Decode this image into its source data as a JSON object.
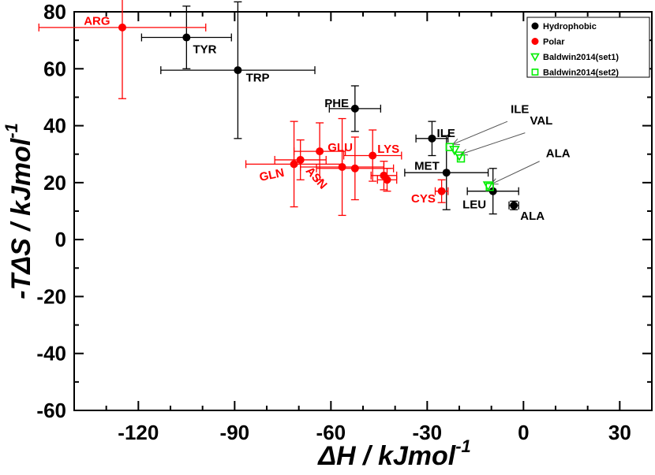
{
  "chart_data": {
    "type": "scatter",
    "xlabel": "ΔH / kJmol",
    "xlabel_sup": "-1",
    "ylabel": "-TΔS / kJmol",
    "ylabel_sup": "-1",
    "xlim": [
      -140,
      40
    ],
    "ylim": [
      -60,
      80
    ],
    "xticks": [
      -120,
      -90,
      -60,
      -30,
      0,
      30
    ],
    "yticks": [
      -60,
      -40,
      -20,
      0,
      20,
      40,
      60,
      80
    ],
    "grid": false,
    "legend_position": "top-right",
    "series": [
      {
        "name": "Hydrophobic",
        "color": "#000000",
        "marker": "filled-circle",
        "points": [
          {
            "x": -105,
            "y": 71,
            "xerr": 14,
            "yerr": 11
          },
          {
            "x": -89,
            "y": 59.5,
            "xerr": 24,
            "yerr": 24
          },
          {
            "x": -52.5,
            "y": 46,
            "xerr": 8,
            "yerr": 8
          },
          {
            "x": -28.5,
            "y": 35.5,
            "xerr": 5,
            "yerr": 6
          },
          {
            "x": -24,
            "y": 23.5,
            "xerr": 13,
            "yerr": 13
          },
          {
            "x": -9.5,
            "y": 17,
            "xerr": 8,
            "yerr": 8
          },
          {
            "x": -3,
            "y": 12,
            "xerr": 1.5,
            "yerr": 1.5
          }
        ]
      },
      {
        "name": "Polar",
        "color": "#ff0000",
        "marker": "filled-circle",
        "points": [
          {
            "x": -125,
            "y": 74.5,
            "xerr": 26,
            "yerr": 25
          },
          {
            "x": -71.5,
            "y": 26.5,
            "xerr": 15,
            "yerr": 15
          },
          {
            "x": -69.5,
            "y": 28,
            "xerr": 8,
            "yerr": 7
          },
          {
            "x": -63.5,
            "y": 31,
            "xerr": 8,
            "yerr": 10
          },
          {
            "x": -56.5,
            "y": 25.5,
            "xerr": 13,
            "yerr": 17
          },
          {
            "x": -52.5,
            "y": 25,
            "xerr": 12,
            "yerr": 11
          },
          {
            "x": -47,
            "y": 29.5,
            "xerr": 9,
            "yerr": 9
          },
          {
            "x": -43.5,
            "y": 22.5,
            "xerr": 4,
            "yerr": 5
          },
          {
            "x": -42.5,
            "y": 21,
            "xerr": 3,
            "yerr": 4
          },
          {
            "x": -25.5,
            "y": 17,
            "xerr": 2,
            "yerr": 4
          }
        ]
      },
      {
        "name": "Baldwin2014(set1)",
        "color": "#00ee00",
        "marker": "open-triangle-down",
        "points": [
          {
            "x": -21.5,
            "y": 31.5
          },
          {
            "x": -20,
            "y": 29.5
          },
          {
            "x": -11,
            "y": 19
          }
        ]
      },
      {
        "name": "Baldwin2014(set2)",
        "color": "#00ee00",
        "marker": "open-square",
        "points": [
          {
            "x": -23,
            "y": 32.5
          },
          {
            "x": -19.5,
            "y": 28.5
          },
          {
            "x": -10.5,
            "y": 18.5
          }
        ]
      }
    ],
    "annotations": [
      {
        "text": "ARG",
        "color": "#ff0000",
        "x": -137,
        "y": 75.5,
        "anchor": "start"
      },
      {
        "text": "TYR",
        "color": "#000000",
        "x": -103,
        "y": 65.5,
        "anchor": "start"
      },
      {
        "text": "TRP",
        "color": "#000000",
        "x": -86.5,
        "y": 55.5,
        "anchor": "start"
      },
      {
        "text": "PHE",
        "color": "#000000",
        "x": -62,
        "y": 46.5,
        "anchor": "start"
      },
      {
        "text": "ILE",
        "color": "#000000",
        "x": -27,
        "y": 36,
        "anchor": "start"
      },
      {
        "text": "GLU",
        "color": "#ff0000",
        "x": -61,
        "y": 31,
        "anchor": "start"
      },
      {
        "text": "LYS",
        "color": "#ff0000",
        "x": -45.5,
        "y": 30.5,
        "anchor": "start"
      },
      {
        "text": "MET",
        "color": "#000000",
        "x": -34,
        "y": 24.5,
        "anchor": "start"
      },
      {
        "text": "CYS",
        "color": "#ff0000",
        "x": -35,
        "y": 13,
        "anchor": "start"
      },
      {
        "text": "LEU",
        "color": "#000000",
        "x": -19,
        "y": 11,
        "anchor": "start"
      },
      {
        "text": "ALA",
        "color": "#000000",
        "x": -1,
        "y": 7,
        "anchor": "start"
      },
      {
        "text": "ILE",
        "color": "#000000",
        "x": -4,
        "y": 44.5,
        "anchor": "start"
      },
      {
        "text": "VAL",
        "color": "#000000",
        "x": 2,
        "y": 40.5,
        "anchor": "start"
      },
      {
        "text": "ALA",
        "color": "#000000",
        "x": 7,
        "y": 29,
        "anchor": "start"
      },
      {
        "text": "GLN",
        "color": "#ff0000",
        "x": -82,
        "y": 20.5,
        "anchor": "start",
        "rotate": -12
      },
      {
        "text": "ASN",
        "color": "#ff0000",
        "x": -68,
        "y": 24,
        "anchor": "start",
        "rotate": 48
      }
    ],
    "arrows": [
      {
        "from": [
          -5,
          41.5
        ],
        "to": [
          -22,
          33.5
        ]
      },
      {
        "from": [
          0.5,
          37.5
        ],
        "to": [
          -19.5,
          30
        ]
      },
      {
        "from": [
          5,
          27.5
        ],
        "to": [
          -10,
          19.5
        ]
      }
    ]
  }
}
